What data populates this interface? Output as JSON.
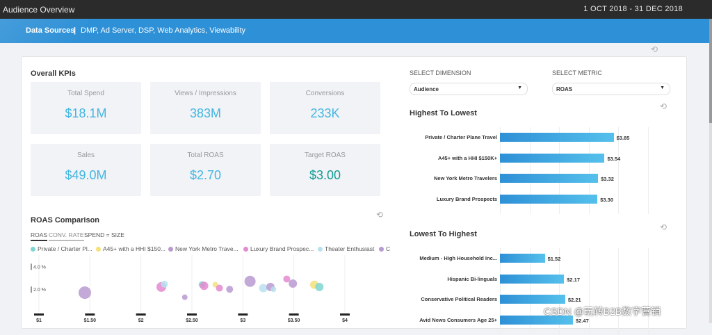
{
  "window": {
    "title": "Audience Overview",
    "date_range": "1 OCT 2018 - 31 DEC 2018"
  },
  "banner": {
    "label": "Data Sources",
    "separator": "|",
    "sources": "DMP, Ad Server, DSP, Web Analytics, Viewability"
  },
  "kpis": {
    "heading": "Overall KPIs",
    "items": [
      {
        "label": "Total Spend",
        "value": "$18.1M"
      },
      {
        "label": "Views / Impressions",
        "value": "383M"
      },
      {
        "label": "Conversions",
        "value": "233K"
      },
      {
        "label": "Sales",
        "value": "$49.0M"
      },
      {
        "label": "Total ROAS",
        "value": "$2.70"
      },
      {
        "label": "Target ROAS",
        "value": "$3.00"
      }
    ]
  },
  "selectors": {
    "dimension_label": "SELECT DIMENSION",
    "dimension_value": "Audience",
    "metric_label": "SELECT METRIC",
    "metric_value": "ROAS"
  },
  "chart_data": [
    {
      "type": "bar",
      "title": "Highest To Lowest",
      "categories": [
        "Private / Charter Plane Travel",
        "A45+ with a HHI $150K+",
        "New York Metro Travelers",
        "Luxury Brand Prospects"
      ],
      "values": [
        3.85,
        3.54,
        3.32,
        3.3
      ],
      "value_labels": [
        "$3.85",
        "$3.54",
        "$3.32",
        "$3.30"
      ],
      "colors": {
        "start": "#2e90d6",
        "end": "#55c0ec"
      }
    },
    {
      "type": "bar",
      "title": "Lowest To Highest",
      "categories": [
        "Medium - High Household Inc...",
        "Hispanic Bi-linguals",
        "Conservative Political Readers",
        "Avid News Consumers Age 25+"
      ],
      "values": [
        1.52,
        2.17,
        2.21,
        2.47
      ],
      "value_labels": [
        "$1.52",
        "$2.17",
        "$2.21",
        "$2.47"
      ],
      "colors": {
        "start": "#2e90d6",
        "end": "#55c0ec"
      }
    },
    {
      "type": "scatter",
      "title": "ROAS Comparison",
      "tabs": [
        "ROAS",
        "CONV. RATE"
      ],
      "size_note": "SPEND = SIZE",
      "legend": [
        {
          "name": "Private / Charter Pl...",
          "color": "#7fd6d0"
        },
        {
          "name": "A45+ with a HHI $150...",
          "color": "#f5e07a"
        },
        {
          "name": "New York Metro Trave...",
          "color": "#b89ad0"
        },
        {
          "name": "Luxury Brand Prospec...",
          "color": "#e48ad0"
        },
        {
          "name": "Theater Enthusiast",
          "color": "#b8e0ee"
        },
        {
          "name": "C",
          "color": "#b89ad0"
        }
      ],
      "y_tick_labels": [
        "4.0 %",
        "2.0 %"
      ],
      "x_tick_labels": [
        "$1",
        "$1.50",
        "$2",
        "$2.50",
        "$3",
        "$3.50",
        "$4"
      ],
      "xlim": [
        1,
        4
      ],
      "ylim": [
        0,
        5
      ],
      "points": [
        {
          "x": 1.45,
          "y": 1.7,
          "s": 9,
          "c": "#b89ad0"
        },
        {
          "x": 2.2,
          "y": 2.2,
          "s": 7,
          "c": "#e48ad0"
        },
        {
          "x": 2.23,
          "y": 2.45,
          "s": 5,
          "c": "#b8e0ee"
        },
        {
          "x": 2.43,
          "y": 1.3,
          "s": 4,
          "c": "#b89ad0"
        },
        {
          "x": 2.6,
          "y": 2.4,
          "s": 5,
          "c": "#7fd6d0"
        },
        {
          "x": 2.62,
          "y": 2.3,
          "s": 6,
          "c": "#e48ad0"
        },
        {
          "x": 2.73,
          "y": 2.4,
          "s": 4,
          "c": "#f5e07a"
        },
        {
          "x": 2.77,
          "y": 2.1,
          "s": 5,
          "c": "#e48ad0"
        },
        {
          "x": 2.87,
          "y": 2.0,
          "s": 5,
          "c": "#b89ad0"
        },
        {
          "x": 3.07,
          "y": 2.7,
          "s": 8,
          "c": "#b89ad0"
        },
        {
          "x": 3.2,
          "y": 2.1,
          "s": 6,
          "c": "#b8e0ee"
        },
        {
          "x": 3.27,
          "y": 2.2,
          "s": 6,
          "c": "#b89ad0"
        },
        {
          "x": 3.3,
          "y": 2.0,
          "s": 4,
          "c": "#b8e0ee"
        },
        {
          "x": 3.43,
          "y": 2.9,
          "s": 5,
          "c": "#e48ad0"
        },
        {
          "x": 3.49,
          "y": 2.5,
          "s": 6,
          "c": "#b89ad0"
        },
        {
          "x": 3.7,
          "y": 2.4,
          "s": 6,
          "c": "#f5e07a"
        },
        {
          "x": 3.75,
          "y": 2.2,
          "s": 6,
          "c": "#7fd6d0"
        }
      ]
    }
  ],
  "watermark": "CSDN @玩转B2B数字营销",
  "icons": {
    "refresh": "refresh-icon",
    "caret": "chevron-down-icon"
  }
}
